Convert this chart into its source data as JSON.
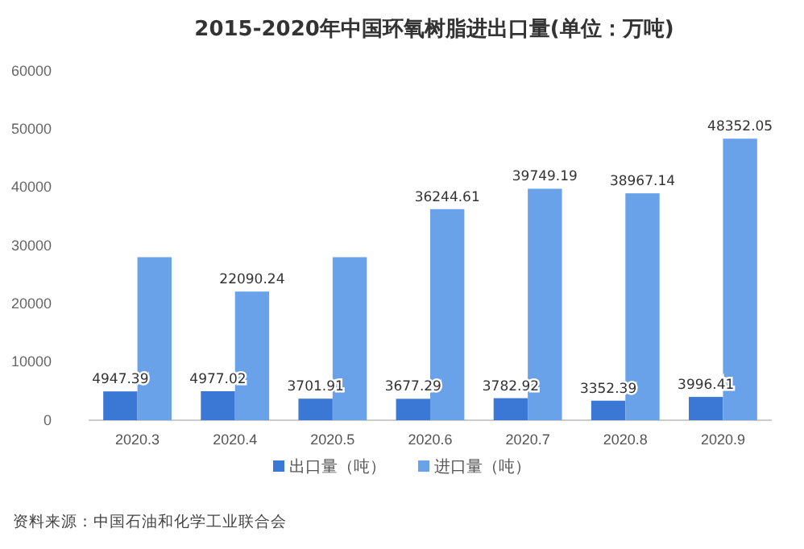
{
  "chart_data": {
    "type": "bar",
    "title": "2015-2020年中国环氧树脂进出口量(单位：万吨)",
    "categories": [
      "2020.3",
      "2020.4",
      "2020.5",
      "2020.6",
      "2020.7",
      "2020.8",
      "2020.9"
    ],
    "series": [
      {
        "name": "出口量（吨）",
        "color": "#3b78d6",
        "values": [
          4947.39,
          4977.02,
          3701.91,
          3677.29,
          3782.92,
          3352.39,
          3996.41
        ],
        "value_labels": [
          "4947.39",
          "4977.02",
          "3701.91",
          "3677.29",
          "3782.92",
          "3352.39",
          "3996.41"
        ]
      },
      {
        "name": "进口量（吨）",
        "color": "#6aa2ea",
        "values": [
          28000,
          22090.24,
          28000,
          36244.61,
          39749.19,
          38967.14,
          48352.05
        ],
        "value_labels": [
          null,
          "22090.24",
          null,
          "36244.61",
          "39749.19",
          "38967.14",
          "48352.05"
        ]
      }
    ],
    "ylim": [
      0,
      60000
    ],
    "yticks": [
      0,
      10000,
      20000,
      30000,
      40000,
      50000,
      60000
    ],
    "grid": false,
    "legend": "bottom",
    "annotations": [
      "资料来源：中国石油和化学工业联合会"
    ]
  }
}
